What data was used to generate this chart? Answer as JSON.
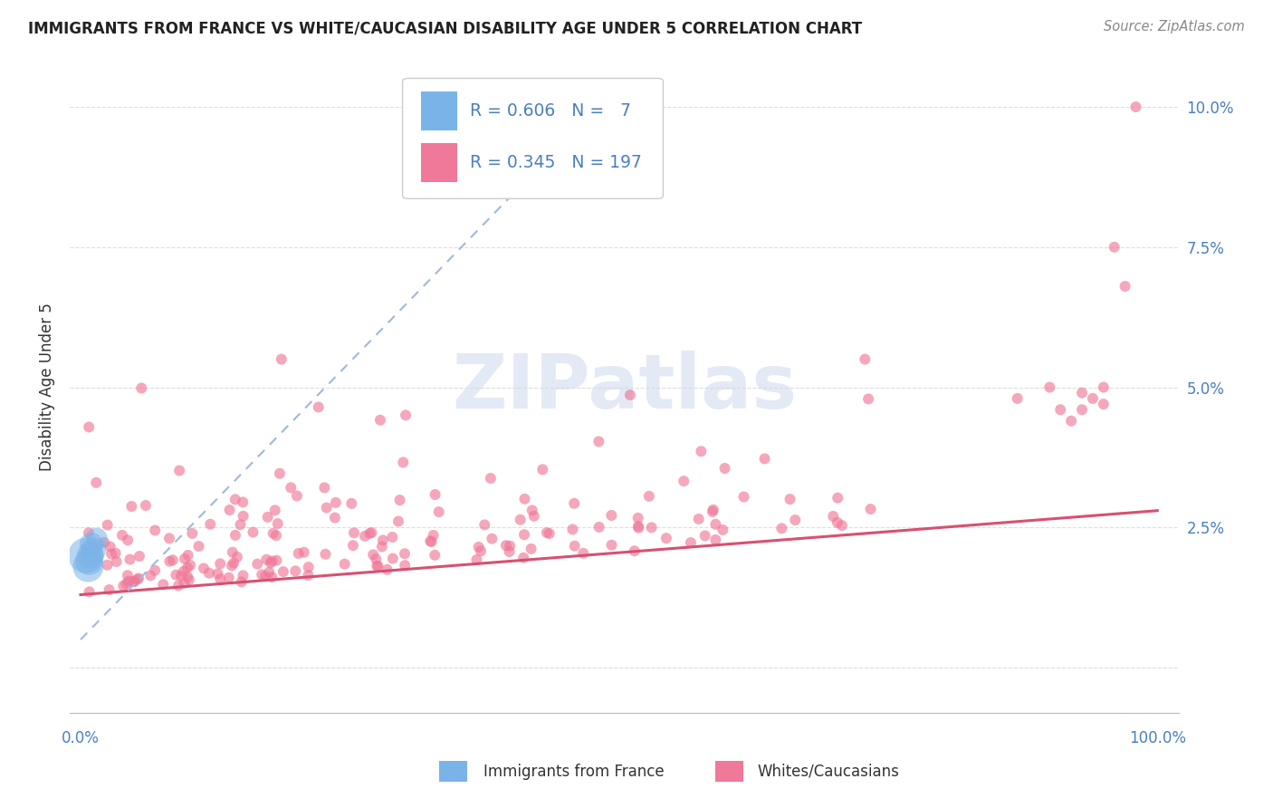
{
  "title": "IMMIGRANTS FROM FRANCE VS WHITE/CAUCASIAN DISABILITY AGE UNDER 5 CORRELATION CHART",
  "source": "Source: ZipAtlas.com",
  "ylabel": "Disability Age Under 5",
  "blue_R": 0.606,
  "blue_N": 7,
  "pink_R": 0.345,
  "pink_N": 197,
  "blue_color": "#7ab3e8",
  "pink_color": "#f07898",
  "blue_line_color": "#a0b8dc",
  "pink_line_color": "#d85070",
  "pink_regression_x0": 0.0,
  "pink_regression_y0": 0.013,
  "pink_regression_x1": 1.0,
  "pink_regression_y1": 0.028,
  "blue_regression_x0": 0.0,
  "blue_regression_y0": 0.005,
  "blue_regression_x1": 0.48,
  "blue_regression_y1": 0.1,
  "xlim_min": -0.01,
  "xlim_max": 1.02,
  "ylim_min": -0.008,
  "ylim_max": 0.108,
  "grid_color": "#dddddd",
  "watermark_color": "#cdd8ee",
  "legend_R_color": "#4a7fc0",
  "right_tick_color": "#4a7fc0"
}
